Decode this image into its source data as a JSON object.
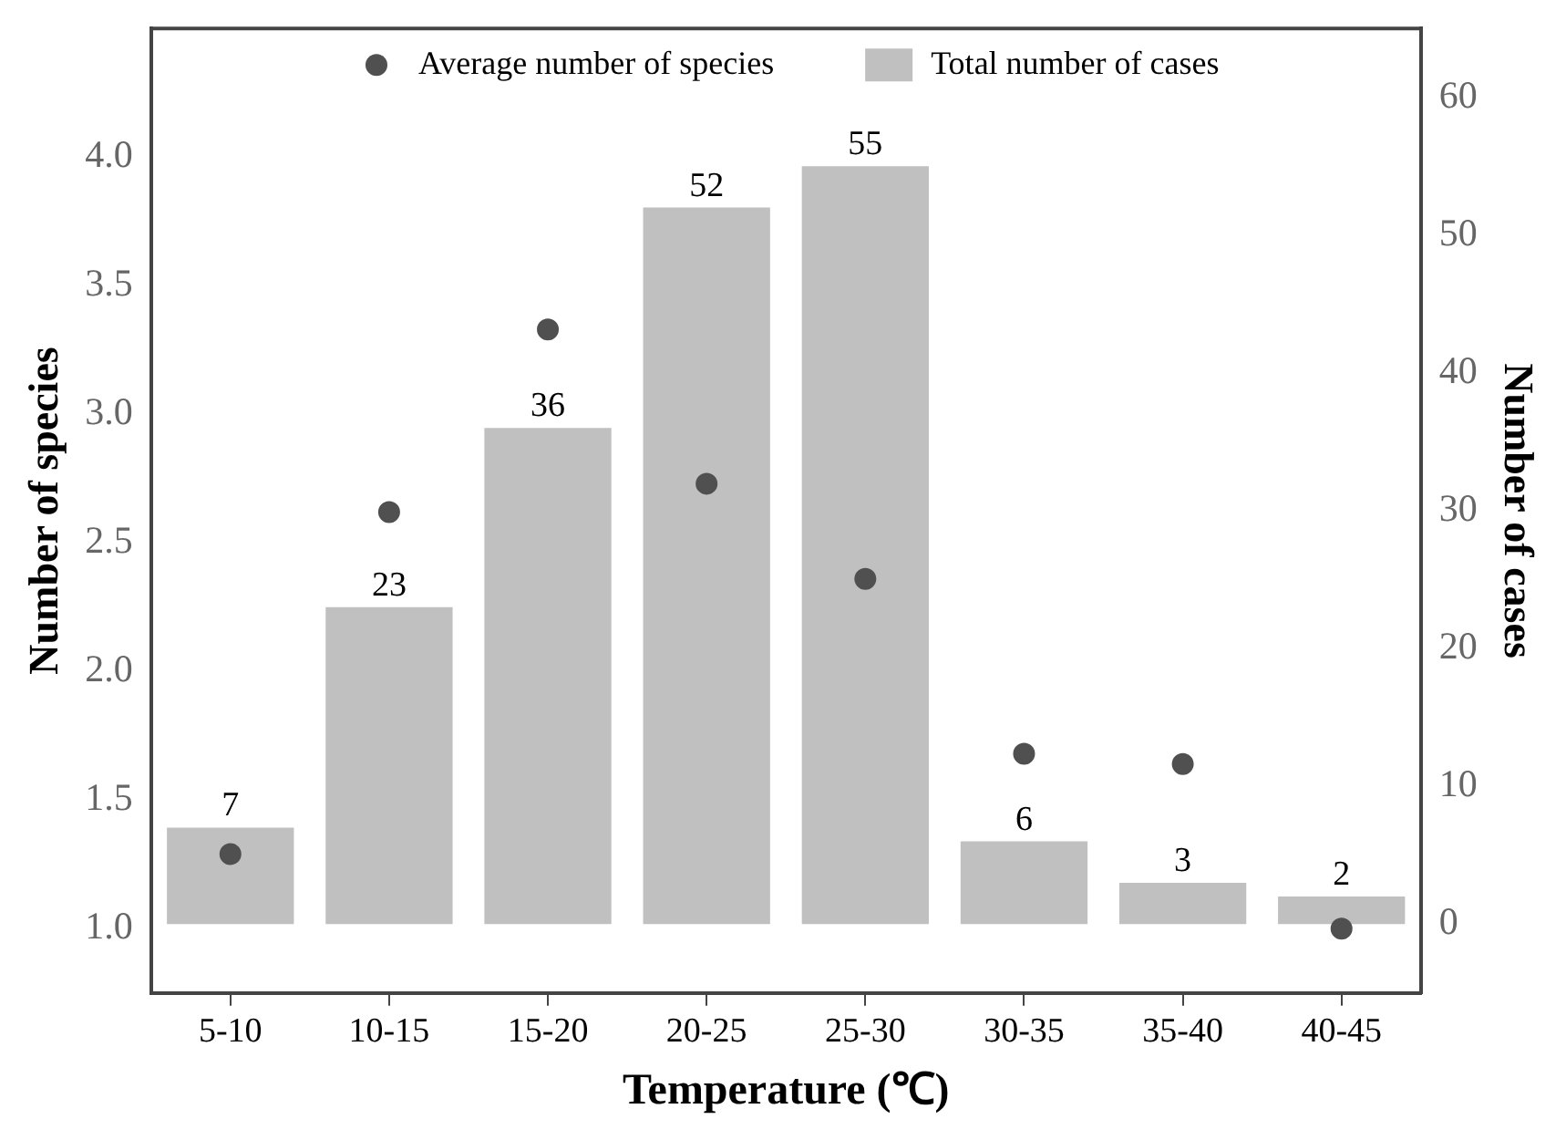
{
  "chart_data": {
    "type": "bar",
    "xlabel": "Temperature (℃)",
    "ylabel": "Number of species",
    "y2label": "Number of cases",
    "categories": [
      "5-10",
      "10-15",
      "15-20",
      "20-25",
      "25-30",
      "30-35",
      "35-40",
      "40-45"
    ],
    "series": [
      {
        "name": "Average number of species",
        "type": "scatter",
        "axis": "y",
        "color": "#505050",
        "marker": "circle",
        "values": [
          1.29,
          2.62,
          3.33,
          2.73,
          2.36,
          1.68,
          1.64,
          1.0
        ]
      },
      {
        "name": "Total number of cases",
        "axis": "y2",
        "color": "#c0c0c0",
        "values": [
          7,
          23,
          36,
          52,
          55,
          6,
          3,
          2
        ],
        "value_labels": [
          "7",
          "23",
          "36",
          "52",
          "55",
          "6",
          "3",
          "2"
        ]
      }
    ],
    "ylim": [
      0.75,
      4.5
    ],
    "yticks": [
      {
        "value": 1,
        "label": "1.0"
      },
      {
        "value": 1.5,
        "label": "1.5"
      },
      {
        "value": 2,
        "label": "2.0"
      },
      {
        "value": 2.5,
        "label": "2.5"
      },
      {
        "value": 3,
        "label": "3.0"
      },
      {
        "value": 3.5,
        "label": "3.5"
      },
      {
        "value": 4,
        "label": "4.0"
      }
    ],
    "y2lim": [
      -5,
      65
    ],
    "y2ticks": [
      0,
      10,
      20,
      30,
      40,
      50,
      60
    ],
    "grid": false,
    "legend": "top"
  }
}
